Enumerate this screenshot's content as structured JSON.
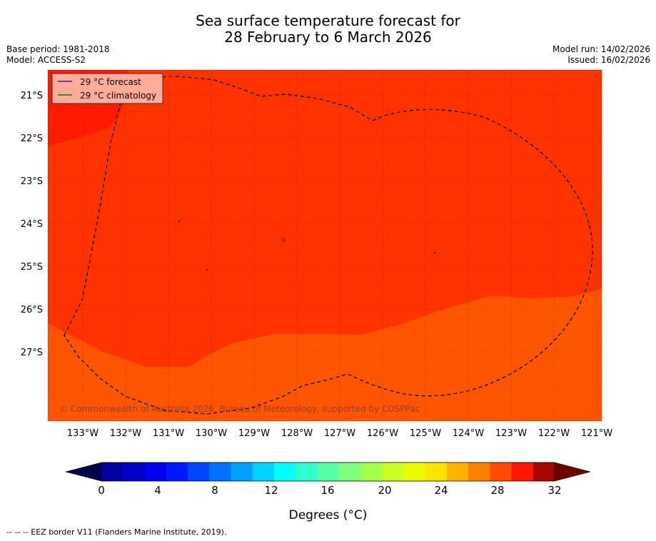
{
  "title": {
    "line1": "Sea surface temperature forecast for",
    "line2": "28 February to 6 March 2026"
  },
  "meta_left": {
    "base_period": "Base period: 1981-2018",
    "model": "Model: ACCESS-S2"
  },
  "meta_right": {
    "model_run": "Model run: 14/02/2026",
    "issued": "Issued: 16/02/2026"
  },
  "legend": {
    "forecast": "29 °C  forecast",
    "climatology": "29 °C  climatology",
    "forecast_color": "#800080",
    "climatology_color": "#008000"
  },
  "map": {
    "lat_labels": [
      "21°S",
      "22°S",
      "23°S",
      "24°S",
      "25°S",
      "26°S",
      "27°S"
    ],
    "lon_labels": [
      "133°W",
      "132°W",
      "131°W",
      "130°W",
      "129°W",
      "128°W",
      "127°W",
      "126°W",
      "125°W",
      "124°W",
      "123°W",
      "122°W",
      "121°W"
    ],
    "copyright": "© Commonwealth of Australia 2026, Bureau of Meteorology, supported by COSPPac",
    "colors": {
      "warm_29": "#ff3300",
      "warm_30": "#ff1a00",
      "warm_28": "#ff5500"
    }
  },
  "colorbar": {
    "ticks": [
      "0",
      "4",
      "8",
      "12",
      "16",
      "20",
      "24",
      "28",
      "32"
    ],
    "label": "Degrees (°C)",
    "min": 0,
    "max": 32,
    "step": 1.5
  },
  "footer": "-- -- -- EEZ border V11 (Flanders Marine Institute, 2019)."
}
